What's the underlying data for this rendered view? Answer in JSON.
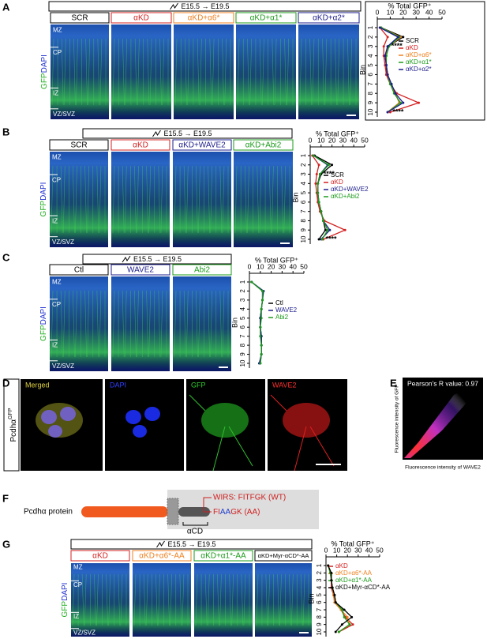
{
  "panel_labels": [
    "A",
    "B",
    "C",
    "D",
    "E",
    "F",
    "G"
  ],
  "image_panels": [
    {
      "timeline": "E15.5 → E19.5",
      "layers": [
        "MZ",
        "CP",
        "IZ",
        "VZ/SVZ"
      ],
      "stain": [
        "GFP",
        "DAPI"
      ]
    },
    {
      "timeline": "E15.5 → E19.5",
      "layers": [
        "MZ",
        "CP",
        "IZ",
        "VZ/SVZ"
      ],
      "stain": [
        "GFP",
        "DAPI"
      ]
    },
    {
      "timeline": "E15.5 → E19.5",
      "layers": [
        "MZ",
        "CP",
        "IZ",
        "VZ/SVZ"
      ],
      "stain": [
        "GFP",
        "DAPI"
      ]
    },
    {
      "timeline": "E15.5 → E19.5",
      "layers": [
        "MZ",
        "CP",
        "IZ",
        "VZ/SVZ"
      ],
      "stain": [
        "GFP",
        "DAPI"
      ]
    }
  ],
  "chart_data": [
    {
      "type": "line",
      "orientation": "horizontal",
      "title": "% Total GFP⁺",
      "y_label": "Bin",
      "categories": [
        "1",
        "2",
        "3",
        "4",
        "5",
        "6",
        "7",
        "8",
        "9",
        "10"
      ],
      "xlim": [
        0,
        50
      ],
      "xticks": [
        0,
        10,
        20,
        30,
        40,
        50
      ],
      "annotations": [
        "****",
        "****"
      ],
      "series": [
        {
          "name": "SCR",
          "color": "#000000",
          "values": [
            3,
            20,
            8,
            6,
            7,
            7,
            10,
            14,
            17,
            8
          ]
        },
        {
          "name": "αKD",
          "color": "#d42020",
          "values": [
            2,
            8,
            5,
            5,
            6,
            7,
            10,
            15,
            32,
            10
          ]
        },
        {
          "name": "αKD+α6*",
          "color": "#f08020",
          "values": [
            3,
            18,
            9,
            6,
            7,
            8,
            10,
            14,
            17,
            8
          ]
        },
        {
          "name": "αKD+α1*",
          "color": "#1a9a1a",
          "values": [
            3,
            17,
            9,
            7,
            7,
            8,
            10,
            13,
            18,
            8
          ]
        },
        {
          "name": "αKD+α2*",
          "color": "#1c1c8c",
          "values": [
            2,
            16,
            8,
            6,
            7,
            8,
            11,
            14,
            20,
            8
          ]
        }
      ]
    },
    {
      "type": "line",
      "orientation": "horizontal",
      "title": "% Total GFP⁺",
      "y_label": "Bin",
      "categories": [
        "1",
        "2",
        "3",
        "4",
        "5",
        "6",
        "7",
        "8",
        "9",
        "10"
      ],
      "xlim": [
        0,
        50
      ],
      "xticks": [
        0,
        10,
        20,
        30,
        40,
        50
      ],
      "annotations": [
        "****",
        "****"
      ],
      "series": [
        {
          "name": "SCR",
          "color": "#000000",
          "values": [
            4,
            20,
            10,
            7,
            7,
            8,
            10,
            12,
            14,
            8
          ]
        },
        {
          "name": "αKD",
          "color": "#d42020",
          "values": [
            2,
            8,
            6,
            5,
            6,
            7,
            9,
            13,
            32,
            12
          ]
        },
        {
          "name": "αKD+WAVE2",
          "color": "#1c1c8c",
          "values": [
            3,
            16,
            9,
            7,
            7,
            8,
            10,
            12,
            18,
            10
          ]
        },
        {
          "name": "αKD+Abi2",
          "color": "#1a9a1a",
          "values": [
            3,
            17,
            9,
            7,
            7,
            8,
            10,
            12,
            16,
            11
          ]
        }
      ]
    },
    {
      "type": "line",
      "orientation": "horizontal",
      "title": "% Total GFP⁺",
      "y_label": "Bin",
      "categories": [
        "1",
        "2",
        "3",
        "4",
        "5",
        "6",
        "7",
        "8",
        "9",
        "10"
      ],
      "xlim": [
        0,
        50
      ],
      "xticks": [
        0,
        10,
        20,
        30,
        40,
        50
      ],
      "series": [
        {
          "name": "Ctl",
          "color": "#000000",
          "values": [
            2,
            12,
            12,
            11,
            10,
            10,
            11,
            11,
            11,
            10
          ]
        },
        {
          "name": "WAVE2",
          "color": "#1c1c8c",
          "values": [
            2,
            13,
            12,
            11,
            10,
            10,
            11,
            11,
            11,
            9
          ]
        },
        {
          "name": "Abi2",
          "color": "#1a9a1a",
          "values": [
            2,
            12,
            12,
            11,
            11,
            10,
            10,
            11,
            11,
            10
          ]
        }
      ]
    },
    {
      "type": "line",
      "orientation": "horizontal",
      "title": "% Total GFP⁺",
      "y_label": "Bin",
      "categories": [
        "1",
        "2",
        "3",
        "4",
        "5",
        "6",
        "7",
        "8",
        "9",
        "10"
      ],
      "xlim": [
        0,
        50
      ],
      "xticks": [
        0,
        10,
        20,
        30,
        40,
        50
      ],
      "series": [
        {
          "name": "αKD",
          "color": "#d42020",
          "values": [
            2,
            4,
            5,
            5,
            7,
            8,
            14,
            18,
            25,
            12
          ]
        },
        {
          "name": "αKD+α6*-AA",
          "color": "#f08020",
          "values": [
            2,
            4,
            5,
            6,
            7,
            8,
            14,
            20,
            22,
            12
          ]
        },
        {
          "name": "αKD+α1*-AA",
          "color": "#1a9a1a",
          "values": [
            2,
            4,
            5,
            6,
            8,
            9,
            15,
            17,
            22,
            12
          ]
        },
        {
          "name": "αKD+Myr-αCD*-AA",
          "color": "#000000",
          "values": [
            2,
            5,
            5,
            6,
            8,
            9,
            17,
            24,
            15,
            9
          ]
        }
      ]
    }
  ],
  "panel_d": {
    "row_label": "Pcdhα",
    "row_label_sup": "GFP",
    "channels": [
      "Merged",
      "DAPI",
      "GFP",
      "WAVE2"
    ]
  },
  "panel_e": {
    "annotation": "Pearson's R value: 0.97",
    "y_label": "Fluorescence intensity of GFP",
    "x_label": "Fluorescence intensity of WAVE2"
  },
  "panel_f": {
    "protein": "Pcdhα protein",
    "wirs_wt": "WIRS: FITFGK (WT)",
    "wirs_aa": [
      "FI",
      "AA",
      "GK (AA)"
    ],
    "domain": "αCD"
  }
}
